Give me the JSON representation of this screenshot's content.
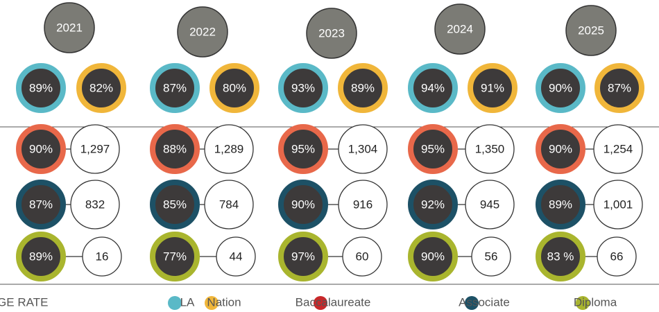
{
  "years": [
    {
      "year": "2021",
      "la": "89%",
      "nation": "82%",
      "baccalaureate": {
        "rate": "90%",
        "count": "1,297"
      },
      "associate": {
        "rate": "87%",
        "count": "832"
      },
      "diploma": {
        "rate": "89%",
        "count": "16"
      }
    },
    {
      "year": "2022",
      "la": "87%",
      "nation": "80%",
      "baccalaureate": {
        "rate": "88%",
        "count": "1,289"
      },
      "associate": {
        "rate": "85%",
        "count": "784"
      },
      "diploma": {
        "rate": "77%",
        "count": "44"
      }
    },
    {
      "year": "2023",
      "la": "93%",
      "nation": "89%",
      "baccalaureate": {
        "rate": "95%",
        "count": "1,304"
      },
      "associate": {
        "rate": "90%",
        "count": "916"
      },
      "diploma": {
        "rate": "97%",
        "count": "60"
      }
    },
    {
      "year": "2024",
      "la": "94%",
      "nation": "91%",
      "baccalaureate": {
        "rate": "95%",
        "count": "1,350"
      },
      "associate": {
        "rate": "92%",
        "count": "945"
      },
      "diploma": {
        "rate": "90%",
        "count": "56"
      }
    },
    {
      "year": "2025",
      "la": "90%",
      "nation": "87%",
      "baccalaureate": {
        "rate": "90%",
        "count": "1,254"
      },
      "associate": {
        "rate": "89%",
        "count": "1,001"
      },
      "diploma": {
        "rate": "83 %",
        "count": "66"
      }
    }
  ],
  "legend": {
    "title": "PASSAGE RATE",
    "items": [
      "LA",
      "Nation",
      "Baccalaureate",
      "Associate",
      "Diploma"
    ]
  }
}
